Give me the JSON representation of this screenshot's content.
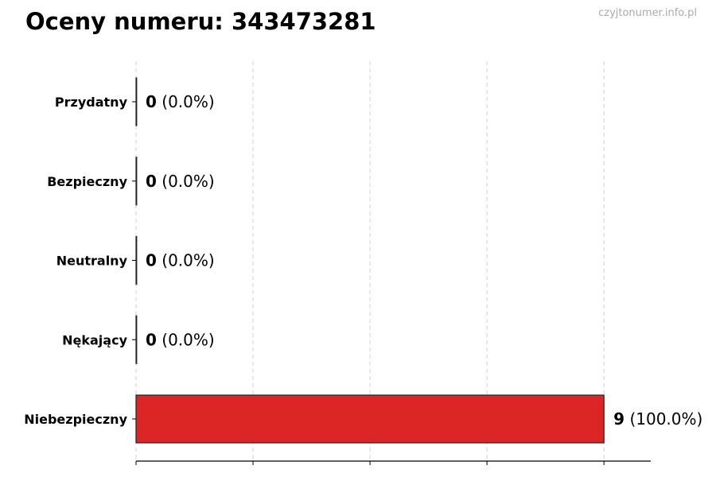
{
  "chart_data": {
    "type": "bar",
    "orientation": "horizontal",
    "title": "Oceny numeru: 343473281",
    "watermark": "czyjtonumer.info.pl",
    "categories": [
      "Przydatny",
      "Bezpieczny",
      "Neutralny",
      "Nękający",
      "Niebezpieczny"
    ],
    "values": [
      0,
      0,
      0,
      0,
      9
    ],
    "percent_labels": [
      "(0.0%)",
      "(0.0%)",
      "(0.0%)",
      "(0.0%)",
      "(100.0%)"
    ],
    "bar_color": "#dc2626",
    "xlim": [
      0,
      9.9
    ],
    "x_ticks": [
      0,
      2.25,
      4.5,
      6.75,
      9
    ],
    "x_tick_labels_shown": false,
    "grid": "x, dashed",
    "xlabel": "",
    "ylabel": ""
  }
}
